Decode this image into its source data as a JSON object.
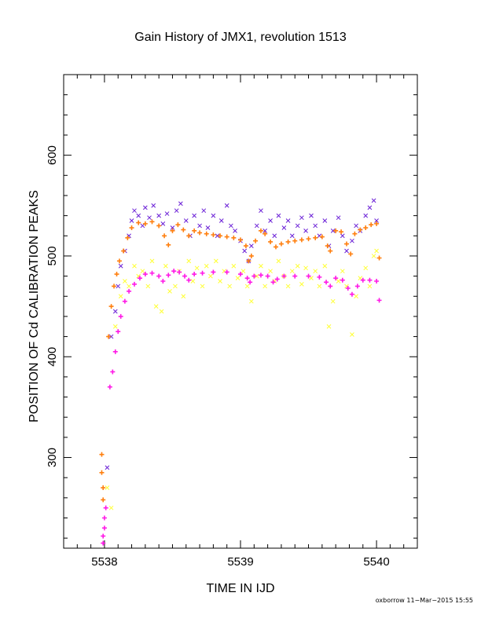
{
  "chart_data": {
    "type": "scatter",
    "title": "Gain History of JMX1, revolution 1513",
    "xlabel": "TIME IN IJD",
    "ylabel": "POSITION OF Cd CALIBRATION PEAKS",
    "xlim": [
      5537.7,
      5540.3
    ],
    "ylim": [
      210,
      680
    ],
    "xticks": [
      5538,
      5539,
      5540
    ],
    "yticks": [
      300,
      400,
      500,
      600
    ],
    "grid": false,
    "series": [
      {
        "color": "#6a1fd6",
        "marker": "x",
        "description_points": [
          [
            5538.02,
            290
          ],
          [
            5538.05,
            420
          ],
          [
            5538.08,
            445
          ],
          [
            5538.1,
            470
          ],
          [
            5538.12,
            490
          ],
          [
            5538.15,
            505
          ],
          [
            5538.18,
            520
          ],
          [
            5538.2,
            535
          ],
          [
            5538.22,
            545
          ],
          [
            5538.25,
            540
          ],
          [
            5538.28,
            530
          ],
          [
            5538.3,
            548
          ],
          [
            5538.33,
            538
          ],
          [
            5538.36,
            550
          ],
          [
            5538.4,
            540
          ],
          [
            5538.43,
            532
          ],
          [
            5538.46,
            542
          ],
          [
            5538.5,
            528
          ],
          [
            5538.53,
            545
          ],
          [
            5538.56,
            552
          ],
          [
            5538.6,
            535
          ],
          [
            5538.63,
            520
          ],
          [
            5538.66,
            540
          ],
          [
            5538.7,
            530
          ],
          [
            5538.73,
            545
          ],
          [
            5538.76,
            528
          ],
          [
            5538.8,
            540
          ],
          [
            5538.83,
            520
          ],
          [
            5538.86,
            535
          ],
          [
            5538.9,
            550
          ],
          [
            5538.93,
            530
          ],
          [
            5538.96,
            525
          ],
          [
            5539.0,
            515
          ],
          [
            5539.03,
            505
          ],
          [
            5539.06,
            495
          ],
          [
            5539.08,
            510
          ],
          [
            5539.12,
            530
          ],
          [
            5539.15,
            545
          ],
          [
            5539.18,
            525
          ],
          [
            5539.22,
            535
          ],
          [
            5539.25,
            520
          ],
          [
            5539.28,
            540
          ],
          [
            5539.32,
            528
          ],
          [
            5539.35,
            535
          ],
          [
            5539.38,
            520
          ],
          [
            5539.42,
            530
          ],
          [
            5539.45,
            538
          ],
          [
            5539.48,
            525
          ],
          [
            5539.52,
            540
          ],
          [
            5539.55,
            530
          ],
          [
            5539.58,
            520
          ],
          [
            5539.62,
            535
          ],
          [
            5539.65,
            510
          ],
          [
            5539.68,
            525
          ],
          [
            5539.72,
            538
          ],
          [
            5539.75,
            520
          ],
          [
            5539.78,
            505
          ],
          [
            5539.82,
            515
          ],
          [
            5539.85,
            530
          ],
          [
            5539.88,
            525
          ],
          [
            5539.92,
            540
          ],
          [
            5539.95,
            548
          ],
          [
            5539.98,
            555
          ],
          [
            5540.0,
            535
          ]
        ]
      },
      {
        "color": "#ffff33",
        "marker": "x",
        "description_points": [
          [
            5538.02,
            270
          ],
          [
            5538.05,
            250
          ],
          [
            5538.08,
            430
          ],
          [
            5538.12,
            460
          ],
          [
            5538.15,
            475
          ],
          [
            5538.18,
            470
          ],
          [
            5538.22,
            490
          ],
          [
            5538.25,
            480
          ],
          [
            5538.28,
            485
          ],
          [
            5538.32,
            470
          ],
          [
            5538.35,
            495
          ],
          [
            5538.38,
            450
          ],
          [
            5538.42,
            445
          ],
          [
            5538.45,
            490
          ],
          [
            5538.48,
            465
          ],
          [
            5538.52,
            470
          ],
          [
            5538.55,
            485
          ],
          [
            5538.58,
            460
          ],
          [
            5538.62,
            495
          ],
          [
            5538.65,
            475
          ],
          [
            5538.68,
            488
          ],
          [
            5538.72,
            470
          ],
          [
            5538.75,
            490
          ],
          [
            5538.78,
            480
          ],
          [
            5538.82,
            495
          ],
          [
            5538.85,
            475
          ],
          [
            5538.88,
            485
          ],
          [
            5538.92,
            470
          ],
          [
            5538.95,
            490
          ],
          [
            5538.98,
            478
          ],
          [
            5539.02,
            485
          ],
          [
            5539.05,
            470
          ],
          [
            5539.08,
            455
          ],
          [
            5539.12,
            480
          ],
          [
            5539.15,
            490
          ],
          [
            5539.18,
            470
          ],
          [
            5539.22,
            485
          ],
          [
            5539.25,
            475
          ],
          [
            5539.28,
            495
          ],
          [
            5539.32,
            480
          ],
          [
            5539.35,
            470
          ],
          [
            5539.38,
            485
          ],
          [
            5539.42,
            490
          ],
          [
            5539.45,
            472
          ],
          [
            5539.48,
            488
          ],
          [
            5539.52,
            478
          ],
          [
            5539.55,
            485
          ],
          [
            5539.58,
            470
          ],
          [
            5539.62,
            490
          ],
          [
            5539.65,
            430
          ],
          [
            5539.68,
            455
          ],
          [
            5539.72,
            475
          ],
          [
            5539.75,
            485
          ],
          [
            5539.78,
            470
          ],
          [
            5539.82,
            422
          ],
          [
            5539.85,
            460
          ],
          [
            5539.88,
            478
          ],
          [
            5539.92,
            488
          ],
          [
            5539.95,
            470
          ],
          [
            5539.98,
            500
          ],
          [
            5540.0,
            505
          ]
        ]
      },
      {
        "color": "#ff7f0e",
        "marker": "+",
        "description_points": [
          [
            5537.98,
            303
          ],
          [
            5537.98,
            285
          ],
          [
            5537.99,
            270
          ],
          [
            5537.99,
            258
          ],
          [
            5538.03,
            420
          ],
          [
            5538.05,
            450
          ],
          [
            5538.07,
            470
          ],
          [
            5538.09,
            482
          ],
          [
            5538.11,
            495
          ],
          [
            5538.14,
            505
          ],
          [
            5538.17,
            518
          ],
          [
            5538.2,
            528
          ],
          [
            5538.25,
            533
          ],
          [
            5538.3,
            532
          ],
          [
            5538.35,
            534
          ],
          [
            5538.4,
            530
          ],
          [
            5538.44,
            520
          ],
          [
            5538.47,
            511
          ],
          [
            5538.5,
            525
          ],
          [
            5538.54,
            531
          ],
          [
            5538.58,
            526
          ],
          [
            5538.62,
            520
          ],
          [
            5538.66,
            525
          ],
          [
            5538.7,
            523
          ],
          [
            5538.75,
            522
          ],
          [
            5538.8,
            521
          ],
          [
            5538.85,
            520
          ],
          [
            5538.9,
            519
          ],
          [
            5538.95,
            518
          ],
          [
            5539.0,
            516
          ],
          [
            5539.04,
            510
          ],
          [
            5539.06,
            495
          ],
          [
            5539.08,
            500
          ],
          [
            5539.11,
            515
          ],
          [
            5539.15,
            525
          ],
          [
            5539.18,
            522
          ],
          [
            5539.22,
            514
          ],
          [
            5539.26,
            509
          ],
          [
            5539.3,
            512
          ],
          [
            5539.35,
            514
          ],
          [
            5539.4,
            515
          ],
          [
            5539.45,
            516
          ],
          [
            5539.5,
            517
          ],
          [
            5539.55,
            518
          ],
          [
            5539.6,
            519
          ],
          [
            5539.64,
            510
          ],
          [
            5539.66,
            505
          ],
          [
            5539.7,
            525
          ],
          [
            5539.74,
            524
          ],
          [
            5539.78,
            512
          ],
          [
            5539.81,
            502
          ],
          [
            5539.84,
            522
          ],
          [
            5539.88,
            526
          ],
          [
            5539.92,
            528
          ],
          [
            5539.96,
            531
          ],
          [
            5540.0,
            532
          ],
          [
            5540.02,
            498
          ]
        ]
      },
      {
        "color": "#ff19e6",
        "marker": "+",
        "description_points": [
          [
            5537.99,
            215
          ],
          [
            5537.99,
            222
          ],
          [
            5538.0,
            230
          ],
          [
            5538.0,
            240
          ],
          [
            5538.01,
            250
          ],
          [
            5538.04,
            370
          ],
          [
            5538.06,
            385
          ],
          [
            5538.08,
            405
          ],
          [
            5538.1,
            425
          ],
          [
            5538.12,
            440
          ],
          [
            5538.15,
            455
          ],
          [
            5538.18,
            465
          ],
          [
            5538.22,
            472
          ],
          [
            5538.26,
            478
          ],
          [
            5538.3,
            482
          ],
          [
            5538.35,
            483
          ],
          [
            5538.4,
            480
          ],
          [
            5538.43,
            475
          ],
          [
            5538.47,
            481
          ],
          [
            5538.51,
            485
          ],
          [
            5538.55,
            484
          ],
          [
            5538.59,
            480
          ],
          [
            5538.62,
            476
          ],
          [
            5538.66,
            482
          ],
          [
            5538.72,
            483
          ],
          [
            5538.8,
            484
          ],
          [
            5538.9,
            484
          ],
          [
            5539.0,
            482
          ],
          [
            5539.05,
            478
          ],
          [
            5539.07,
            474
          ],
          [
            5539.1,
            480
          ],
          [
            5539.15,
            481
          ],
          [
            5539.2,
            480
          ],
          [
            5539.24,
            474
          ],
          [
            5539.27,
            477
          ],
          [
            5539.32,
            480
          ],
          [
            5539.4,
            480
          ],
          [
            5539.5,
            480
          ],
          [
            5539.58,
            479
          ],
          [
            5539.63,
            474
          ],
          [
            5539.66,
            470
          ],
          [
            5539.7,
            478
          ],
          [
            5539.75,
            476
          ],
          [
            5539.79,
            468
          ],
          [
            5539.82,
            462
          ],
          [
            5539.86,
            470
          ],
          [
            5539.9,
            476
          ],
          [
            5539.95,
            476
          ],
          [
            5540.0,
            475
          ],
          [
            5540.02,
            456
          ]
        ]
      }
    ]
  },
  "footer": "oxborrow 11−Mar−2015 15:55"
}
